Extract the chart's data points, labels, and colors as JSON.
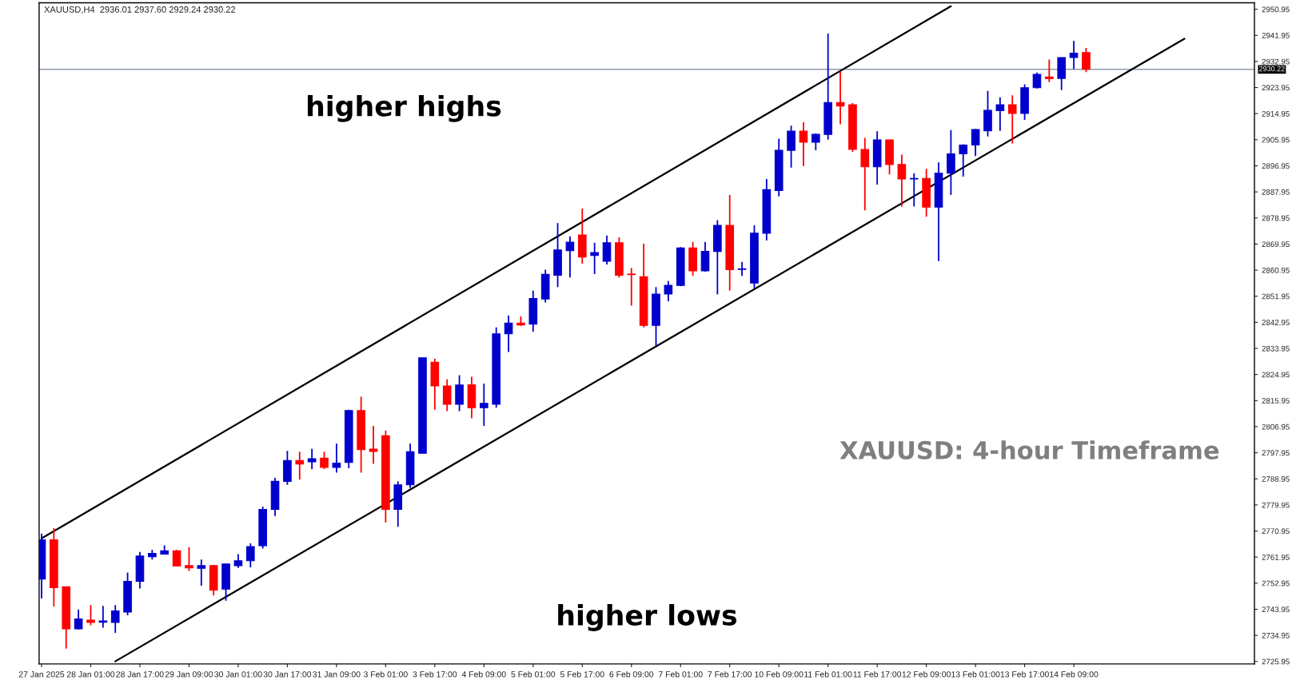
{
  "chart_data": {
    "type": "candlestick",
    "title": "XAUUSD,H4  2936.01 2937.60 2929.24 2930.22",
    "categories": [
      "27 Jan 2025",
      null,
      null,
      null,
      "28 Jan 01:00",
      null,
      null,
      null,
      "28 Jan 17:00",
      null,
      null,
      null,
      "29 Jan 09:00",
      null,
      null,
      null,
      "30 Jan 01:00",
      null,
      null,
      null,
      "30 Jan 17:00",
      null,
      null,
      null,
      "31 Jan 09:00",
      null,
      null,
      null,
      "3 Feb 01:00",
      null,
      null,
      null,
      "3 Feb 17:00",
      null,
      null,
      null,
      "4 Feb 09:00",
      null,
      null,
      null,
      "5 Feb 01:00",
      null,
      null,
      null,
      "5 Feb 17:00",
      null,
      null,
      null,
      "6 Feb 09:00",
      null,
      null,
      null,
      "7 Feb 01:00",
      null,
      null,
      null,
      "7 Feb 17:00",
      null,
      null,
      null,
      "10 Feb 09:00",
      null,
      null,
      null,
      "11 Feb 01:00",
      null,
      null,
      null,
      "11 Feb 17:00",
      null,
      null,
      null,
      "12 Feb 09:00",
      null,
      null,
      null,
      "13 Feb 01:00",
      null,
      null,
      null,
      "13 Feb 17:00",
      null,
      null,
      null,
      "14 Feb 09:00",
      null,
      null,
      null,
      null,
      null,
      null,
      null,
      null,
      null,
      null,
      null,
      null,
      null,
      null
    ],
    "ohlc": [
      [
        2754.4,
        2770.1,
        2747.7,
        2767.9
      ],
      [
        2767.9,
        2771.9,
        2744.9,
        2751.4
      ],
      [
        2751.7,
        2751.7,
        2730.4,
        2737.2
      ],
      [
        2737.2,
        2743.9,
        2736.9,
        2740.6
      ],
      [
        2740.2,
        2745.4,
        2738.4,
        2739.4
      ],
      [
        2739.5,
        2745.1,
        2737.6,
        2739.9
      ],
      [
        2739.4,
        2745.4,
        2735.8,
        2743.4
      ],
      [
        2743.0,
        2756.6,
        2741.9,
        2753.6
      ],
      [
        2753.6,
        2763.7,
        2751.1,
        2762.3
      ],
      [
        2762.1,
        2764.5,
        2761.1,
        2763.2
      ],
      [
        2763.0,
        2766.0,
        2762.8,
        2764.1
      ],
      [
        2764.1,
        2764.4,
        2758.9,
        2758.9
      ],
      [
        2759.0,
        2765.4,
        2757.2,
        2758.2
      ],
      [
        2758.1,
        2761.1,
        2752.1,
        2759.0
      ],
      [
        2759.0,
        2759.3,
        2748.7,
        2750.6
      ],
      [
        2750.9,
        2759.6,
        2746.9,
        2759.6
      ],
      [
        2759.0,
        2763.0,
        2758.2,
        2760.7
      ],
      [
        2760.7,
        2766.7,
        2758.4,
        2765.6
      ],
      [
        2765.9,
        2779.4,
        2764.9,
        2778.4
      ],
      [
        2778.4,
        2789.3,
        2776.1,
        2788.1
      ],
      [
        2788.1,
        2798.6,
        2786.9,
        2795.3
      ],
      [
        2795.3,
        2798.3,
        2788.7,
        2794.1
      ],
      [
        2794.8,
        2799.3,
        2792.3,
        2795.9
      ],
      [
        2796.1,
        2798.3,
        2792.3,
        2792.9
      ],
      [
        2792.9,
        2801.1,
        2791.1,
        2794.4
      ],
      [
        2794.6,
        2812.8,
        2792.6,
        2812.5
      ],
      [
        2812.5,
        2817.3,
        2791.1,
        2799.0
      ],
      [
        2799.2,
        2807.2,
        2794.1,
        2798.4
      ],
      [
        2803.8,
        2805.6,
        2773.9,
        2778.4
      ],
      [
        2778.4,
        2788.1,
        2772.4,
        2786.9
      ],
      [
        2786.9,
        2801.1,
        2785.8,
        2798.3
      ],
      [
        2797.8,
        2830.7,
        2797.8,
        2830.7
      ],
      [
        2829.2,
        2830.4,
        2812.8,
        2821.0
      ],
      [
        2821.0,
        2823.3,
        2812.3,
        2814.7
      ],
      [
        2814.7,
        2824.7,
        2812.3,
        2821.3
      ],
      [
        2821.4,
        2824.2,
        2809.8,
        2813.5
      ],
      [
        2813.5,
        2821.8,
        2807.2,
        2815.0
      ],
      [
        2814.7,
        2841.2,
        2813.5,
        2839.0
      ],
      [
        2839.0,
        2845.3,
        2832.7,
        2842.7
      ],
      [
        2842.7,
        2845.0,
        2841.7,
        2842.0
      ],
      [
        2842.3,
        2853.9,
        2839.7,
        2851.2
      ],
      [
        2851.0,
        2861.1,
        2849.8,
        2859.5
      ],
      [
        2859.2,
        2877.2,
        2855.1,
        2867.9
      ],
      [
        2867.7,
        2872.6,
        2858.4,
        2870.6
      ],
      [
        2873.1,
        2882.2,
        2863.2,
        2865.5
      ],
      [
        2866.0,
        2870.4,
        2859.6,
        2867.0
      ],
      [
        2864.0,
        2872.9,
        2862.9,
        2870.4
      ],
      [
        2870.4,
        2872.3,
        2858.4,
        2859.2
      ],
      [
        2859.6,
        2861.7,
        2848.7,
        2859.4
      ],
      [
        2858.7,
        2870.1,
        2841.2,
        2841.9
      ],
      [
        2841.9,
        2855.1,
        2834.8,
        2852.7
      ],
      [
        2852.7,
        2857.2,
        2850.2,
        2855.7
      ],
      [
        2855.7,
        2868.9,
        2855.4,
        2868.6
      ],
      [
        2868.6,
        2870.7,
        2859.0,
        2860.7
      ],
      [
        2860.7,
        2870.7,
        2860.4,
        2867.4
      ],
      [
        2867.4,
        2878.2,
        2852.6,
        2876.4
      ],
      [
        2876.4,
        2886.9,
        2853.9,
        2861.1
      ],
      [
        2861.2,
        2863.8,
        2859.0,
        2861.4
      ],
      [
        2856.5,
        2876.4,
        2854.7,
        2873.7
      ],
      [
        2873.7,
        2892.4,
        2871.2,
        2888.7
      ],
      [
        2888.4,
        2906.3,
        2886.4,
        2902.3
      ],
      [
        2902.3,
        2910.8,
        2896.3,
        2908.9
      ],
      [
        2908.9,
        2912.0,
        2896.9,
        2905.1
      ],
      [
        2905.1,
        2908.1,
        2902.3,
        2907.8
      ],
      [
        2907.8,
        2942.6,
        2906.0,
        2918.8
      ],
      [
        2918.8,
        2929.5,
        2911.3,
        2917.6
      ],
      [
        2918.0,
        2918.6,
        2901.8,
        2902.6
      ],
      [
        2902.6,
        2906.6,
        2881.6,
        2896.6
      ],
      [
        2896.6,
        2908.9,
        2890.5,
        2905.9
      ],
      [
        2905.9,
        2905.9,
        2894.0,
        2897.4
      ],
      [
        2897.4,
        2900.8,
        2882.9,
        2892.4
      ],
      [
        2892.4,
        2894.4,
        2882.9,
        2892.6
      ],
      [
        2892.6,
        2895.9,
        2879.4,
        2882.7
      ],
      [
        2882.7,
        2898.1,
        2864.1,
        2894.4
      ],
      [
        2894.4,
        2909.3,
        2886.9,
        2901.1
      ],
      [
        2901.1,
        2904.4,
        2893.2,
        2904.1
      ],
      [
        2904.1,
        2909.6,
        2900.3,
        2909.5
      ],
      [
        2909.0,
        2922.8,
        2907.1,
        2916.1
      ],
      [
        2916.0,
        2920.6,
        2909.0,
        2918.0
      ],
      [
        2918.0,
        2921.3,
        2904.7,
        2915.0
      ],
      [
        2915.0,
        2925.1,
        2912.8,
        2923.9
      ],
      [
        2923.9,
        2929.1,
        2923.6,
        2928.5
      ],
      [
        2927.6,
        2933.6,
        2925.8,
        2927.0
      ],
      [
        2927.1,
        2934.3,
        2923.1,
        2934.3
      ],
      [
        2934.3,
        2940.0,
        2930.3,
        2935.8
      ],
      [
        2936.01,
        2937.6,
        2929.24,
        2930.22
      ],
      null,
      null,
      null,
      null,
      null,
      null,
      null,
      null,
      null,
      null,
      null,
      null,
      null
    ],
    "colors": [
      "#0000cd",
      "#ff0000",
      "#ff0000",
      "#0000cd",
      "#ff0000",
      "#0000cd",
      "#0000cd",
      "#0000cd",
      "#0000cd",
      "#0000cd",
      "#0000cd",
      "#ff0000",
      "#ff0000",
      "#0000cd",
      "#ff0000",
      "#0000cd",
      "#0000cd",
      "#0000cd",
      "#0000cd",
      "#0000cd",
      "#0000cd",
      "#ff0000",
      "#0000cd",
      "#ff0000",
      "#0000cd",
      "#0000cd",
      "#ff0000",
      "#ff0000",
      "#ff0000",
      "#0000cd",
      "#0000cd",
      "#0000cd",
      "#ff0000",
      "#ff0000",
      "#0000cd",
      "#ff0000",
      "#0000cd",
      "#0000cd",
      "#0000cd",
      "#ff0000",
      "#0000cd",
      "#0000cd",
      "#0000cd",
      "#0000cd",
      "#ff0000",
      "#0000cd",
      "#0000cd",
      "#ff0000",
      "#ff0000",
      "#ff0000",
      "#0000cd",
      "#0000cd",
      "#0000cd",
      "#ff0000",
      "#0000cd",
      "#0000cd",
      "#ff0000",
      "#0000cd",
      "#0000cd",
      "#0000cd",
      "#0000cd",
      "#0000cd",
      "#ff0000",
      "#0000cd",
      "#0000cd",
      "#ff0000",
      "#ff0000",
      "#ff0000",
      "#0000cd",
      "#ff0000",
      "#ff0000",
      "#0000cd",
      "#ff0000",
      "#0000cd",
      "#0000cd",
      "#0000cd",
      "#0000cd",
      "#0000cd",
      "#0000cd",
      "#ff0000",
      "#0000cd",
      "#0000cd",
      "#ff0000",
      "#0000cd",
      "#0000cd",
      "#ff0000",
      null,
      null,
      null,
      null,
      null,
      null,
      null,
      null,
      null,
      null,
      null,
      null,
      null
    ],
    "series": [
      {
        "type": "line",
        "color": "#000000",
        "values": [
          2768.4,
          null,
          null,
          null,
          null,
          null,
          null,
          null,
          null,
          null,
          null,
          null,
          null,
          null,
          null,
          null,
          null,
          null,
          null,
          null,
          null,
          null,
          null,
          null,
          null,
          null,
          null,
          null,
          null,
          null,
          null,
          null,
          null,
          null,
          null,
          null,
          null,
          null,
          null,
          null,
          null,
          null,
          null,
          null,
          null,
          null,
          null,
          null,
          null,
          null,
          null,
          null,
          null,
          null,
          null,
          null,
          null,
          null,
          null,
          null,
          null,
          null,
          null,
          null,
          null,
          null,
          null,
          null,
          null,
          null,
          null,
          null,
          null,
          null,
          2952.0,
          null,
          null,
          null,
          null,
          null,
          null,
          null,
          null,
          null,
          null,
          null,
          null,
          null,
          null,
          null,
          null,
          null,
          null,
          null,
          null,
          null,
          null,
          null,
          null
        ]
      },
      {
        "type": "line",
        "color": "#000000",
        "values": [
          null,
          null,
          null,
          null,
          null,
          null,
          2726.0,
          null,
          null,
          null,
          null,
          null,
          null,
          null,
          null,
          null,
          null,
          null,
          null,
          null,
          null,
          null,
          null,
          null,
          null,
          null,
          null,
          null,
          null,
          null,
          null,
          null,
          null,
          null,
          null,
          null,
          null,
          null,
          null,
          null,
          null,
          null,
          null,
          null,
          null,
          null,
          null,
          null,
          null,
          null,
          null,
          null,
          null,
          null,
          null,
          null,
          null,
          null,
          null,
          null,
          null,
          null,
          null,
          null,
          null,
          null,
          null,
          null,
          null,
          null,
          null,
          null,
          null,
          null,
          null,
          null,
          null,
          null,
          null,
          null,
          null,
          null,
          null,
          null,
          null,
          null,
          null,
          null,
          null,
          null,
          null,
          null,
          null,
          2940.8,
          null,
          null,
          null,
          null,
          null
        ]
      }
    ],
    "ref_lines": [
      {
        "axis": "y",
        "value": 2930.22,
        "label": "2930.22",
        "color": "#8a9bb0"
      }
    ],
    "annotations": [
      "higher highs",
      "higher lows",
      "XAUUSD: 4-hour Timeframe"
    ],
    "ylim": [
      2725.1,
      2953.2
    ],
    "yticks": [
      2725.95,
      2734.95,
      2743.95,
      2752.95,
      2761.95,
      2770.95,
      2779.95,
      2788.95,
      2797.95,
      2806.95,
      2815.95,
      2824.95,
      2833.95,
      2842.95,
      2851.95,
      2860.95,
      2869.95,
      2878.95,
      2887.95,
      2896.95,
      2905.95,
      2914.95,
      2923.95,
      2932.95,
      2941.95,
      2950.95
    ],
    "grid": false,
    "legend": false
  }
}
